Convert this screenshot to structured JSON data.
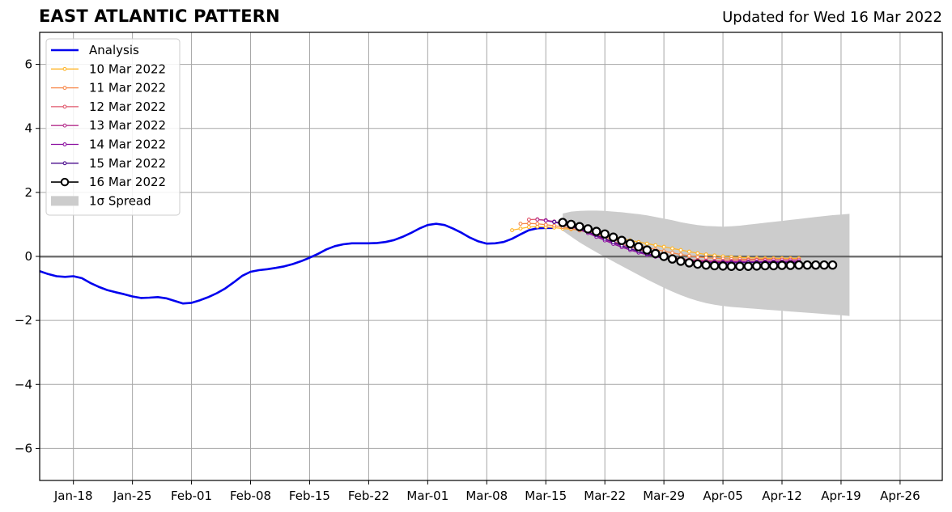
{
  "chart_data": {
    "type": "line",
    "title": "EAST ATLANTIC PATTERN",
    "subtitle": "Updated for Wed 16 Mar 2022",
    "xlabel": "",
    "ylabel": "",
    "ylim": [
      -7,
      7
    ],
    "xlim": [
      "2022-01-14",
      "2022-05-01"
    ],
    "yticks": [
      -6,
      -4,
      -2,
      0,
      2,
      4,
      6
    ],
    "ytick_labels": [
      "−6",
      "−4",
      "−2",
      "0",
      "2",
      "4",
      "6"
    ],
    "xticks": [
      "2022-01-18",
      "2022-01-25",
      "2022-02-01",
      "2022-02-08",
      "2022-02-15",
      "2022-02-22",
      "2022-03-01",
      "2022-03-08",
      "2022-03-15",
      "2022-03-22",
      "2022-03-29",
      "2022-04-05",
      "2022-04-12",
      "2022-04-19",
      "2022-04-26"
    ],
    "xtick_labels": [
      "Jan-18",
      "Jan-25",
      "Feb-01",
      "Feb-08",
      "Feb-15",
      "Feb-22",
      "Mar-01",
      "Mar-08",
      "Mar-15",
      "Mar-22",
      "Mar-29",
      "Apr-05",
      "Apr-12",
      "Apr-19",
      "Apr-26"
    ],
    "grid": true,
    "legend_position": "top-left",
    "legend": [
      "Analysis",
      "10 Mar 2022",
      "11 Mar 2022",
      "12 Mar 2022",
      "13 Mar 2022",
      "14 Mar 2022",
      "15 Mar 2022",
      "16 Mar 2022",
      "1σ Spread"
    ],
    "analysis": {
      "name": "Analysis",
      "color": "#0000ee",
      "x": [
        "2022-01-14",
        "2022-01-15",
        "2022-01-16",
        "2022-01-17",
        "2022-01-18",
        "2022-01-19",
        "2022-01-20",
        "2022-01-21",
        "2022-01-22",
        "2022-01-23",
        "2022-01-24",
        "2022-01-25",
        "2022-01-26",
        "2022-01-27",
        "2022-01-28",
        "2022-01-29",
        "2022-01-30",
        "2022-01-31",
        "2022-02-01",
        "2022-02-02",
        "2022-02-03",
        "2022-02-04",
        "2022-02-05",
        "2022-02-06",
        "2022-02-07",
        "2022-02-08",
        "2022-02-09",
        "2022-02-10",
        "2022-02-11",
        "2022-02-12",
        "2022-02-13",
        "2022-02-14",
        "2022-02-15",
        "2022-02-16",
        "2022-02-17",
        "2022-02-18",
        "2022-02-19",
        "2022-02-20",
        "2022-02-21",
        "2022-02-22",
        "2022-02-23",
        "2022-02-24",
        "2022-02-25",
        "2022-02-26",
        "2022-02-27",
        "2022-02-28",
        "2022-03-01",
        "2022-03-02",
        "2022-03-03",
        "2022-03-04",
        "2022-03-05",
        "2022-03-06",
        "2022-03-07",
        "2022-03-08",
        "2022-03-09",
        "2022-03-10",
        "2022-03-11",
        "2022-03-12",
        "2022-03-13",
        "2022-03-14",
        "2022-03-15",
        "2022-03-16"
      ],
      "values": [
        -0.46,
        -0.55,
        -0.62,
        -0.64,
        -0.62,
        -0.68,
        -0.83,
        -0.95,
        -1.05,
        -1.12,
        -1.18,
        -1.25,
        -1.3,
        -1.29,
        -1.27,
        -1.31,
        -1.39,
        -1.47,
        -1.45,
        -1.37,
        -1.27,
        -1.15,
        -1.0,
        -0.81,
        -0.61,
        -0.48,
        -0.43,
        -0.4,
        -0.36,
        -0.31,
        -0.24,
        -0.15,
        -0.04,
        0.08,
        0.22,
        0.32,
        0.38,
        0.41,
        0.41,
        0.41,
        0.42,
        0.45,
        0.51,
        0.61,
        0.73,
        0.87,
        0.98,
        1.02,
        0.98,
        0.87,
        0.74,
        0.59,
        0.47,
        0.4,
        0.41,
        0.45,
        0.55,
        0.69,
        0.82,
        0.88,
        0.89,
        0.89
      ]
    },
    "forecasts": [
      {
        "name": "10 Mar 2022",
        "color": "#ffb52a",
        "start": "2022-03-11",
        "values": [
          0.82,
          0.87,
          0.92,
          0.93,
          0.92,
          0.9,
          0.87,
          0.85,
          0.82,
          0.78,
          0.73,
          0.68,
          0.62,
          0.56,
          0.5,
          0.45,
          0.4,
          0.35,
          0.3,
          0.25,
          0.2,
          0.15,
          0.1,
          0.06,
          0.03,
          0.0,
          -0.02,
          -0.03,
          -0.04,
          -0.05,
          -0.06,
          -0.06,
          -0.06,
          -0.06,
          -0.06
        ]
      },
      {
        "name": "11 Mar 2022",
        "color": "#f7884a",
        "start": "2022-03-12",
        "values": [
          1.02,
          1.03,
          1.02,
          0.99,
          0.96,
          0.92,
          0.87,
          0.81,
          0.75,
          0.68,
          0.61,
          0.53,
          0.46,
          0.4,
          0.34,
          0.28,
          0.22,
          0.16,
          0.11,
          0.06,
          0.02,
          -0.02,
          -0.04,
          -0.06,
          -0.07,
          -0.08,
          -0.08,
          -0.09,
          -0.09,
          -0.09,
          -0.1,
          -0.1,
          -0.1,
          -0.1
        ]
      },
      {
        "name": "12 Mar 2022",
        "color": "#e0566b",
        "start": "2022-03-13",
        "values": [
          1.15,
          1.16,
          1.13,
          1.08,
          1.01,
          0.94,
          0.85,
          0.76,
          0.66,
          0.56,
          0.46,
          0.38,
          0.3,
          0.22,
          0.15,
          0.08,
          0.02,
          -0.03,
          -0.07,
          -0.1,
          -0.12,
          -0.13,
          -0.14,
          -0.14,
          -0.14,
          -0.13,
          -0.12,
          -0.11,
          -0.11,
          -0.1,
          -0.1,
          -0.1,
          -0.1
        ]
      },
      {
        "name": "13 Mar 2022",
        "color": "#b52f8c",
        "start": "2022-03-14",
        "values": [
          1.15,
          1.13,
          1.09,
          1.02,
          0.94,
          0.85,
          0.75,
          0.64,
          0.53,
          0.43,
          0.33,
          0.24,
          0.16,
          0.09,
          0.03,
          -0.02,
          -0.06,
          -0.09,
          -0.12,
          -0.14,
          -0.15,
          -0.16,
          -0.17,
          -0.17,
          -0.17,
          -0.17,
          -0.17,
          -0.16,
          -0.16,
          -0.16,
          -0.16,
          -0.16
        ]
      },
      {
        "name": "14 Mar 2022",
        "color": "#8b0fa0",
        "start": "2022-03-15",
        "values": [
          1.12,
          1.07,
          1.01,
          0.93,
          0.84,
          0.73,
          0.61,
          0.5,
          0.39,
          0.29,
          0.2,
          0.12,
          0.05,
          -0.01,
          -0.06,
          -0.1,
          -0.13,
          -0.15,
          -0.16,
          -0.17,
          -0.18,
          -0.18,
          -0.18,
          -0.18,
          -0.18,
          -0.17,
          -0.17,
          -0.16,
          -0.16,
          -0.15,
          -0.15
        ]
      },
      {
        "name": "15 Mar 2022",
        "color": "#4a0b8c",
        "start": "2022-03-16",
        "values": [
          1.08,
          1.03,
          0.96,
          0.87,
          0.77,
          0.66,
          0.55,
          0.44,
          0.34,
          0.24,
          0.16,
          0.08,
          0.01,
          -0.05,
          -0.1,
          -0.14,
          -0.16,
          -0.18,
          -0.19,
          -0.2,
          -0.2,
          -0.2,
          -0.2,
          -0.19,
          -0.19,
          -0.19,
          -0.19,
          -0.19,
          -0.19,
          -0.19
        ]
      }
    ],
    "current_forecast": {
      "name": "16 Mar 2022",
      "color": "#000000",
      "start": "2022-03-17",
      "values": [
        1.06,
        1.0,
        0.93,
        0.86,
        0.78,
        0.7,
        0.6,
        0.5,
        0.4,
        0.3,
        0.2,
        0.09,
        0.0,
        -0.08,
        -0.15,
        -0.2,
        -0.24,
        -0.27,
        -0.29,
        -0.3,
        -0.31,
        -0.31,
        -0.31,
        -0.3,
        -0.29,
        -0.29,
        -0.28,
        -0.28,
        -0.27,
        -0.27,
        -0.27,
        -0.27,
        -0.27
      ]
    },
    "spread": {
      "name": "1σ Spread",
      "color": "#cccccc",
      "start": "2022-03-17",
      "upper": [
        1.34,
        1.4,
        1.42,
        1.43,
        1.43,
        1.42,
        1.4,
        1.38,
        1.35,
        1.32,
        1.28,
        1.23,
        1.18,
        1.13,
        1.07,
        1.02,
        0.98,
        0.95,
        0.94,
        0.93,
        0.94,
        0.96,
        0.99,
        1.02,
        1.05,
        1.08,
        1.11,
        1.14,
        1.17,
        1.2,
        1.23,
        1.26,
        1.29,
        1.31,
        1.33
      ],
      "lower": [
        0.8,
        0.62,
        0.44,
        0.28,
        0.13,
        -0.02,
        -0.16,
        -0.3,
        -0.44,
        -0.58,
        -0.72,
        -0.85,
        -0.98,
        -1.1,
        -1.21,
        -1.31,
        -1.39,
        -1.46,
        -1.51,
        -1.55,
        -1.58,
        -1.6,
        -1.62,
        -1.64,
        -1.66,
        -1.68,
        -1.7,
        -1.72,
        -1.74,
        -1.76,
        -1.78,
        -1.8,
        -1.82,
        -1.84,
        -1.86
      ]
    }
  }
}
